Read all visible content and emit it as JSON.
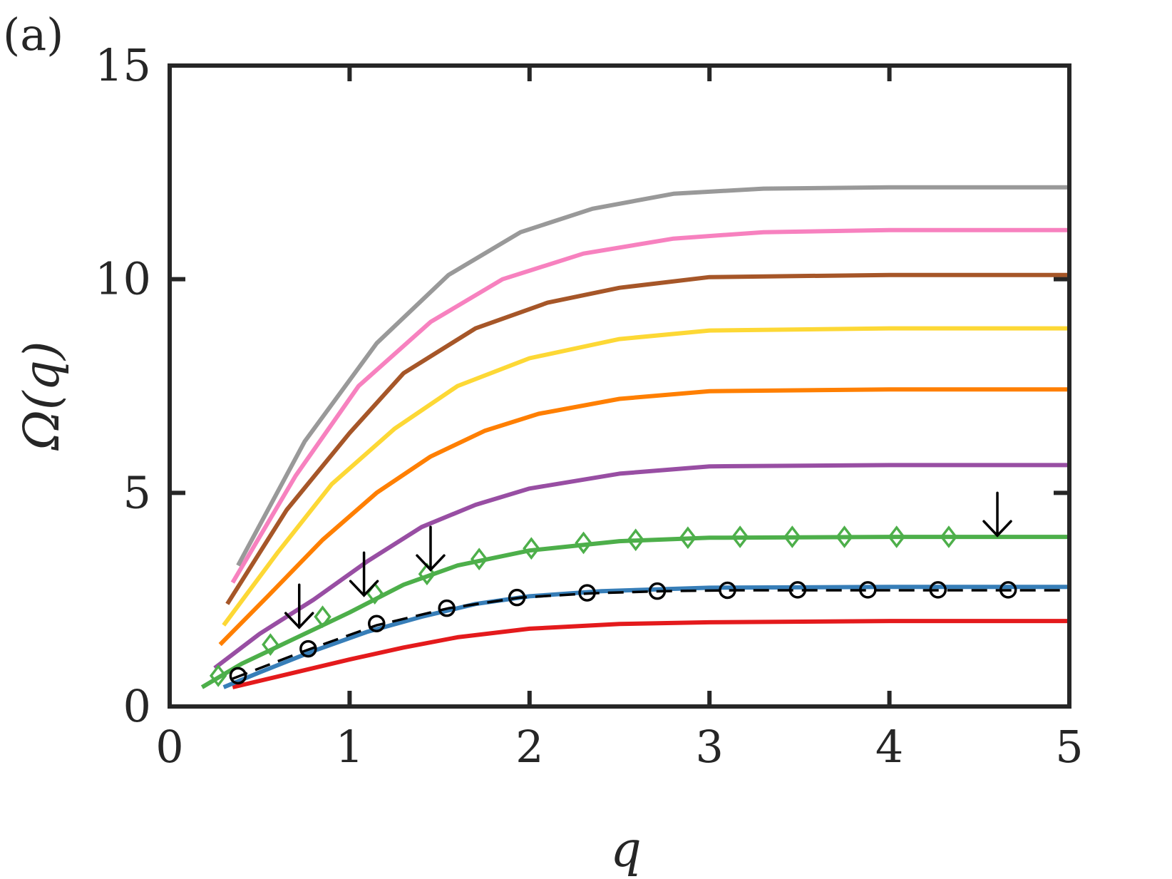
{
  "chart_data": {
    "type": "line",
    "panel_label": "(a)",
    "xlabel": "q",
    "ylabel": "Ω(q)",
    "xlim": [
      0,
      5
    ],
    "ylim": [
      0,
      15
    ],
    "x_ticks": [
      0,
      1,
      2,
      3,
      4,
      5
    ],
    "y_ticks": [
      0,
      5,
      10,
      15
    ],
    "x_tick_labels": [
      "0",
      "1",
      "2",
      "3",
      "4",
      "5"
    ],
    "y_tick_labels": [
      "0",
      "5",
      "10",
      "15"
    ],
    "grid": false,
    "legend": "none",
    "series": [
      {
        "color": "#e41a1c",
        "points": [
          [
            0.35,
            0.45
          ],
          [
            0.7,
            0.8
          ],
          [
            1.0,
            1.1
          ],
          [
            1.3,
            1.38
          ],
          [
            1.6,
            1.62
          ],
          [
            2.0,
            1.82
          ],
          [
            2.5,
            1.93
          ],
          [
            3.0,
            1.97
          ],
          [
            4.0,
            2.0
          ],
          [
            5.0,
            2.0
          ]
        ]
      },
      {
        "color": "#377eb8",
        "points": [
          [
            0.3,
            0.45
          ],
          [
            0.5,
            0.8
          ],
          [
            0.8,
            1.3
          ],
          [
            1.1,
            1.75
          ],
          [
            1.4,
            2.1
          ],
          [
            1.7,
            2.4
          ],
          [
            2.0,
            2.58
          ],
          [
            2.4,
            2.7
          ],
          [
            3.0,
            2.78
          ],
          [
            4.0,
            2.8
          ],
          [
            5.0,
            2.8
          ]
        ]
      },
      {
        "color": "#4daf4a",
        "points": [
          [
            0.18,
            0.45
          ],
          [
            0.4,
            1.0
          ],
          [
            0.7,
            1.6
          ],
          [
            1.0,
            2.2
          ],
          [
            1.3,
            2.85
          ],
          [
            1.6,
            3.3
          ],
          [
            2.0,
            3.65
          ],
          [
            2.5,
            3.87
          ],
          [
            3.0,
            3.95
          ],
          [
            4.0,
            3.97
          ],
          [
            5.0,
            3.97
          ]
        ]
      },
      {
        "color": "#984ea3",
        "points": [
          [
            0.25,
            0.9
          ],
          [
            0.5,
            1.7
          ],
          [
            0.8,
            2.5
          ],
          [
            1.1,
            3.4
          ],
          [
            1.4,
            4.2
          ],
          [
            1.7,
            4.72
          ],
          [
            2.0,
            5.1
          ],
          [
            2.5,
            5.45
          ],
          [
            3.0,
            5.62
          ],
          [
            4.0,
            5.65
          ],
          [
            5.0,
            5.65
          ]
        ]
      },
      {
        "color": "#ff7f00",
        "points": [
          [
            0.28,
            1.45
          ],
          [
            0.55,
            2.6
          ],
          [
            0.85,
            3.9
          ],
          [
            1.15,
            5.0
          ],
          [
            1.45,
            5.85
          ],
          [
            1.75,
            6.45
          ],
          [
            2.05,
            6.85
          ],
          [
            2.5,
            7.2
          ],
          [
            3.0,
            7.38
          ],
          [
            4.0,
            7.42
          ],
          [
            5.0,
            7.42
          ]
        ]
      },
      {
        "color": "#fdd835",
        "points": [
          [
            0.3,
            1.9
          ],
          [
            0.6,
            3.6
          ],
          [
            0.9,
            5.2
          ],
          [
            1.25,
            6.5
          ],
          [
            1.6,
            7.5
          ],
          [
            2.0,
            8.15
          ],
          [
            2.5,
            8.6
          ],
          [
            3.0,
            8.8
          ],
          [
            4.0,
            8.85
          ],
          [
            5.0,
            8.85
          ]
        ]
      },
      {
        "color": "#a65628",
        "points": [
          [
            0.32,
            2.4
          ],
          [
            0.65,
            4.6
          ],
          [
            1.0,
            6.4
          ],
          [
            1.3,
            7.8
          ],
          [
            1.7,
            8.85
          ],
          [
            2.1,
            9.45
          ],
          [
            2.5,
            9.8
          ],
          [
            3.0,
            10.05
          ],
          [
            4.0,
            10.1
          ],
          [
            5.0,
            10.1
          ]
        ]
      },
      {
        "color": "#f781bf",
        "points": [
          [
            0.35,
            2.9
          ],
          [
            0.7,
            5.4
          ],
          [
            1.05,
            7.5
          ],
          [
            1.45,
            9.0
          ],
          [
            1.85,
            10.0
          ],
          [
            2.3,
            10.6
          ],
          [
            2.8,
            10.95
          ],
          [
            3.3,
            11.1
          ],
          [
            4.0,
            11.15
          ],
          [
            5.0,
            11.15
          ]
        ]
      },
      {
        "color": "#999999",
        "points": [
          [
            0.38,
            3.3
          ],
          [
            0.75,
            6.2
          ],
          [
            1.15,
            8.5
          ],
          [
            1.55,
            10.1
          ],
          [
            1.95,
            11.1
          ],
          [
            2.35,
            11.65
          ],
          [
            2.8,
            12.0
          ],
          [
            3.3,
            12.12
          ],
          [
            4.0,
            12.15
          ],
          [
            5.0,
            12.15
          ]
        ]
      }
    ],
    "dashed_series": {
      "color": "#000000",
      "points": [
        [
          0.35,
          0.65
        ],
        [
          0.75,
          1.3
        ],
        [
          1.15,
          1.9
        ],
        [
          1.55,
          2.3
        ],
        [
          1.95,
          2.55
        ],
        [
          2.35,
          2.65
        ],
        [
          2.75,
          2.7
        ],
        [
          3.15,
          2.72
        ],
        [
          3.55,
          2.72
        ],
        [
          3.95,
          2.72
        ],
        [
          4.35,
          2.72
        ],
        [
          5.0,
          2.72
        ]
      ]
    },
    "circle_markers": {
      "color": "#000000",
      "points": [
        [
          0.38,
          0.72
        ],
        [
          0.77,
          1.35
        ],
        [
          1.15,
          1.94
        ],
        [
          1.54,
          2.3
        ],
        [
          1.93,
          2.55
        ],
        [
          2.32,
          2.66
        ],
        [
          2.71,
          2.7
        ],
        [
          3.1,
          2.72
        ],
        [
          3.49,
          2.73
        ],
        [
          3.88,
          2.73
        ],
        [
          4.27,
          2.73
        ],
        [
          4.66,
          2.73
        ]
      ]
    },
    "diamond_markers": {
      "color": "#4daf4a",
      "points": [
        [
          0.27,
          0.72
        ],
        [
          0.56,
          1.45
        ],
        [
          0.85,
          2.1
        ],
        [
          1.14,
          2.65
        ],
        [
          1.43,
          3.1
        ],
        [
          1.72,
          3.45
        ],
        [
          2.01,
          3.7
        ],
        [
          2.3,
          3.83
        ],
        [
          2.59,
          3.9
        ],
        [
          2.88,
          3.95
        ],
        [
          3.17,
          3.97
        ],
        [
          3.46,
          3.97
        ],
        [
          3.75,
          3.97
        ],
        [
          4.04,
          3.97
        ],
        [
          4.33,
          3.97
        ]
      ]
    },
    "arrows": [
      {
        "x": 0.72,
        "y_top": 2.85,
        "y_tip": 1.85
      },
      {
        "x": 1.08,
        "y_top": 3.6,
        "y_tip": 2.6
      },
      {
        "x": 1.45,
        "y_top": 4.2,
        "y_tip": 3.2
      },
      {
        "x": 4.6,
        "y_top": 5.0,
        "y_tip": 4.0
      }
    ]
  }
}
